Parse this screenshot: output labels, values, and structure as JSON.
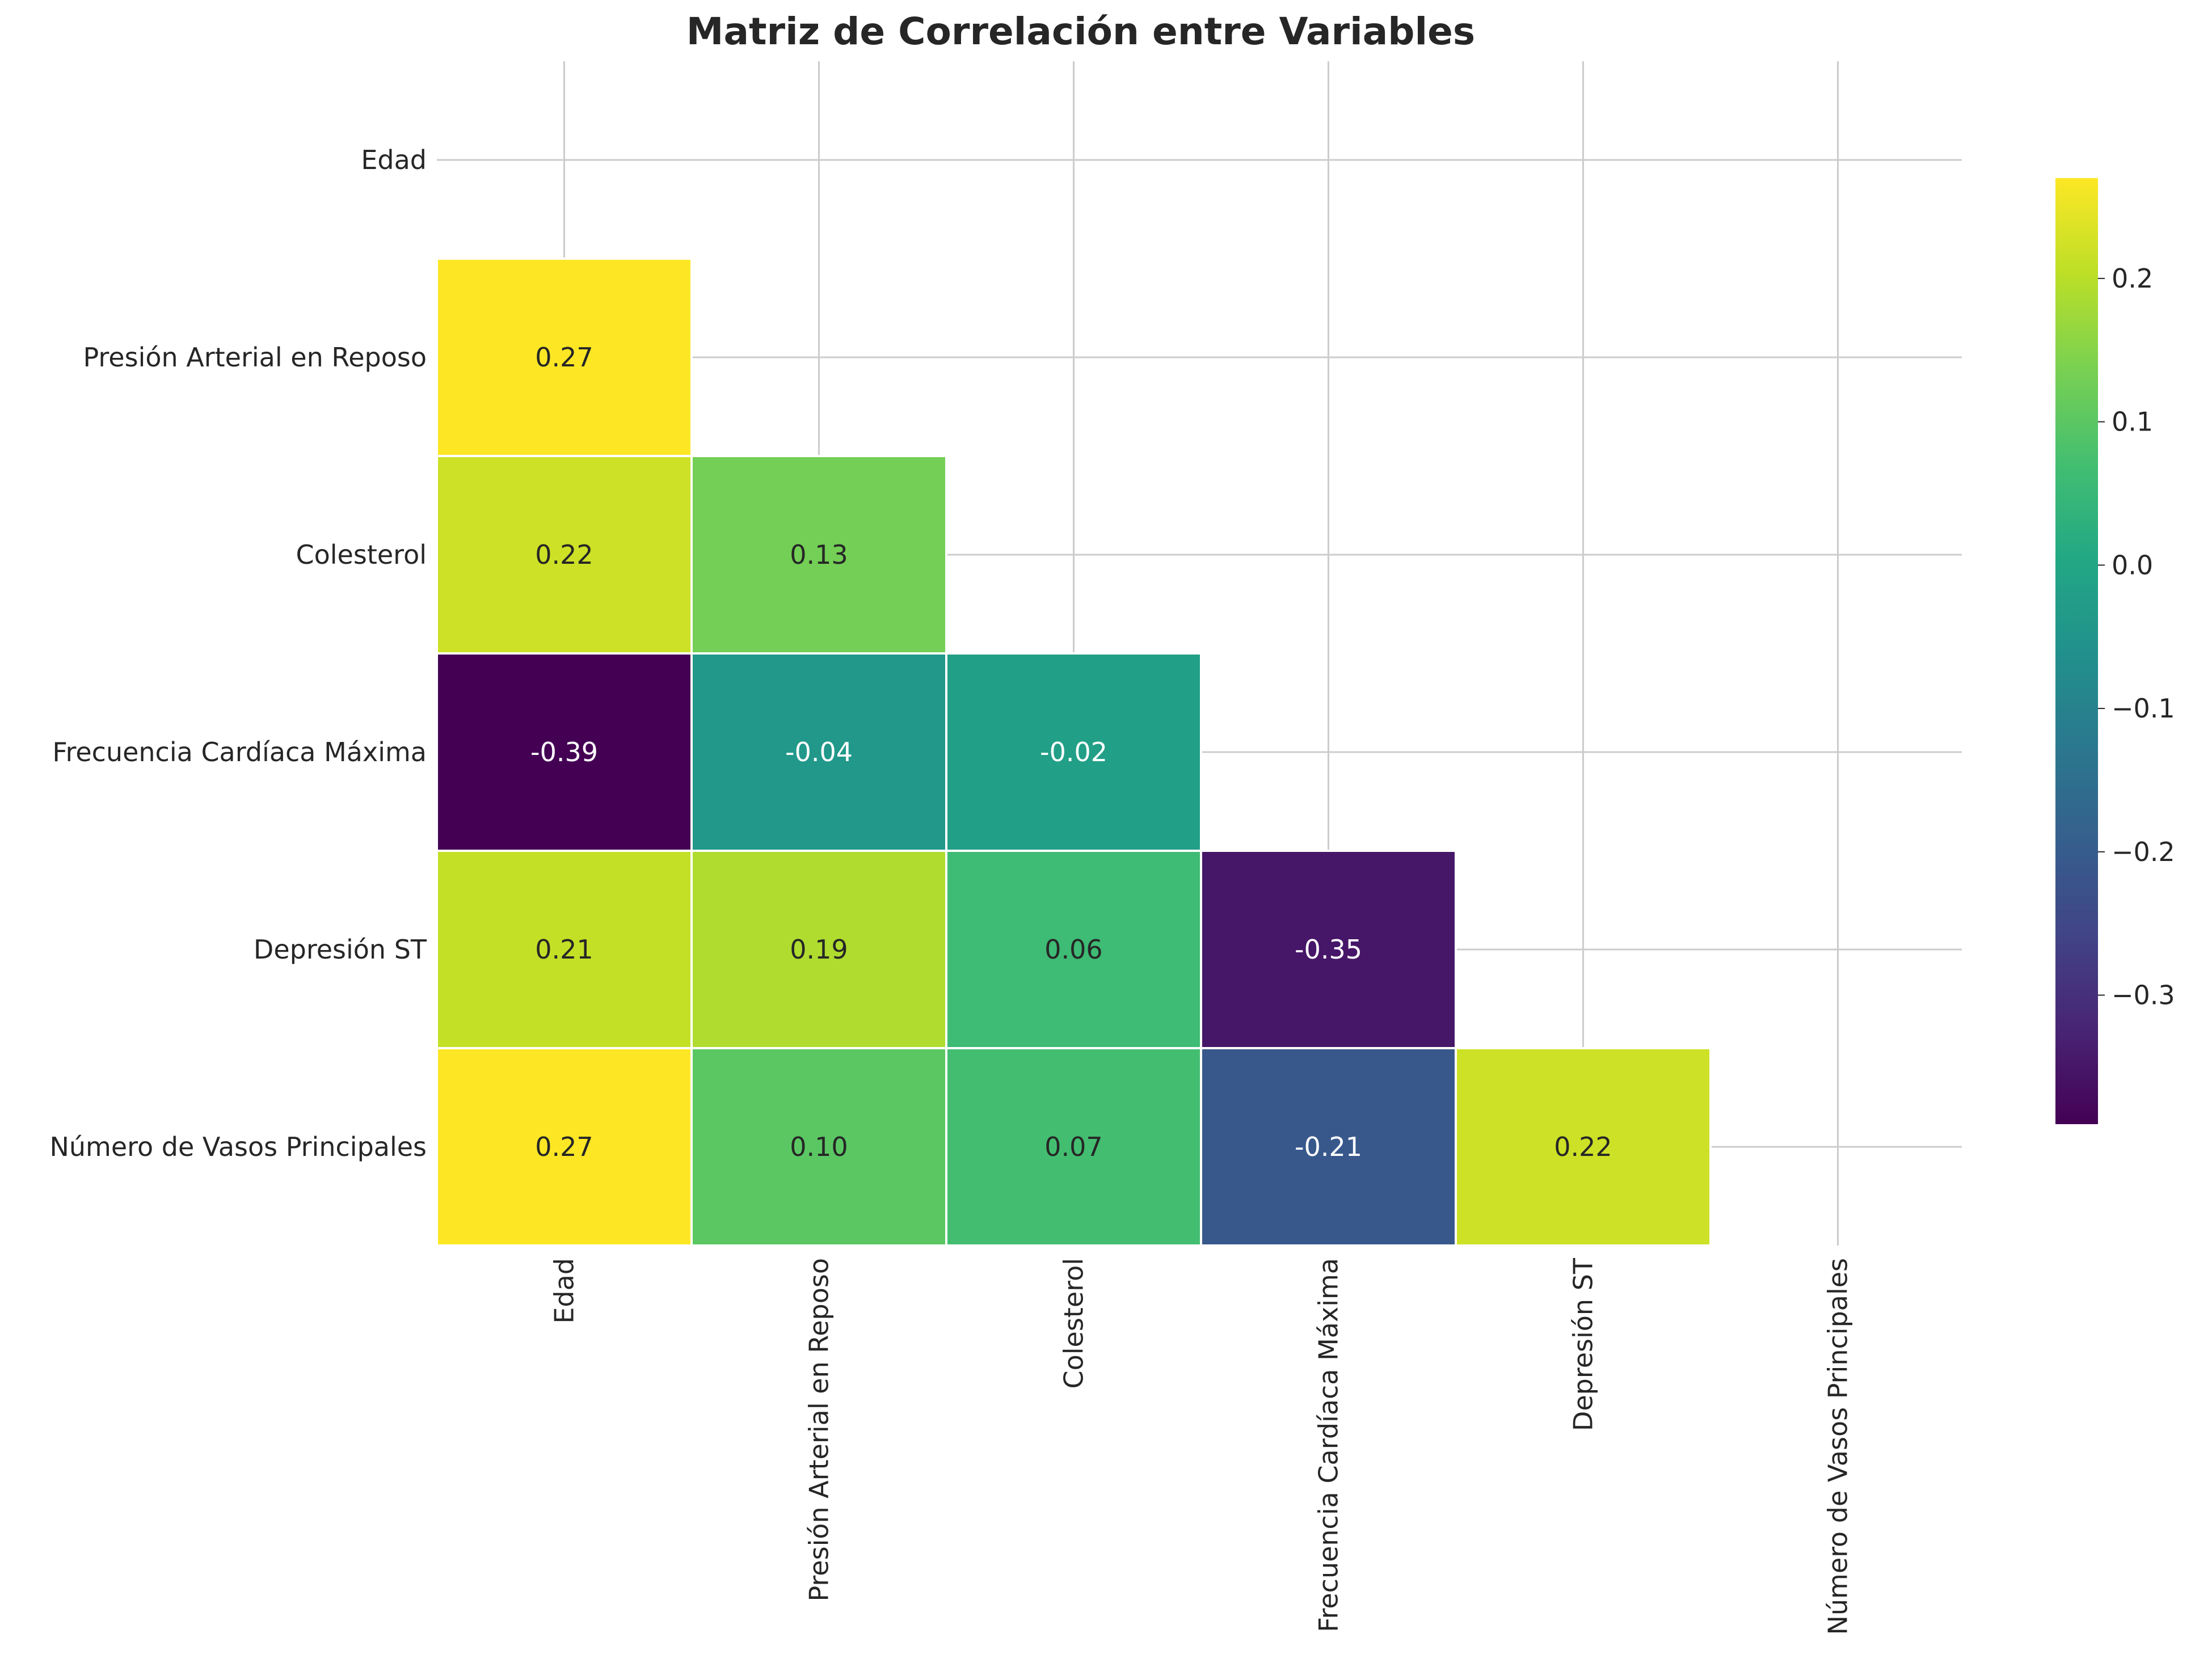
{
  "chart_data": {
    "type": "heatmap",
    "title": "Matriz de Correlación entre Variables",
    "xlabel": "",
    "ylabel": "",
    "variables": [
      "Edad",
      "Presión Arterial en Reposo",
      "Colesterol",
      "Frecuencia Cardíaca Máxima",
      "Depresión ST",
      "Número de Vasos Principales"
    ],
    "mask": "upper-triangle-including-diagonal",
    "matrix": [
      [
        null,
        null,
        null,
        null,
        null,
        null
      ],
      [
        0.27,
        null,
        null,
        null,
        null,
        null
      ],
      [
        0.22,
        0.13,
        null,
        null,
        null,
        null
      ],
      [
        -0.39,
        -0.04,
        -0.02,
        null,
        null,
        null
      ],
      [
        0.21,
        0.19,
        0.06,
        -0.35,
        null,
        null
      ],
      [
        0.27,
        0.1,
        0.07,
        -0.21,
        0.22,
        null
      ]
    ],
    "cell_labels": [
      [
        "",
        "",
        "",
        "",
        "",
        ""
      ],
      [
        "0.27",
        "",
        "",
        "",
        "",
        ""
      ],
      [
        "0.22",
        "0.13",
        "",
        "",
        "",
        ""
      ],
      [
        "-0.39",
        "-0.04",
        "-0.02",
        "",
        "",
        ""
      ],
      [
        "0.21",
        "0.19",
        "0.06",
        "-0.35",
        "",
        ""
      ],
      [
        "0.27",
        "0.10",
        "0.07",
        "-0.21",
        "0.22",
        ""
      ]
    ],
    "colormap": "viridis",
    "colorbar": {
      "range": [
        -0.39,
        0.27
      ],
      "ticks": [
        0.2,
        0.1,
        0.0,
        -0.1,
        -0.2,
        -0.3
      ],
      "tick_labels": [
        "0.2",
        "0.1",
        "0.0",
        "−0.1",
        "−0.2",
        "−0.3"
      ]
    },
    "grid": true,
    "cell_border_color": "#ffffff",
    "grid_color": "#cccccc",
    "text_color_dark": "#262626",
    "text_color_light": "#ffffff"
  }
}
